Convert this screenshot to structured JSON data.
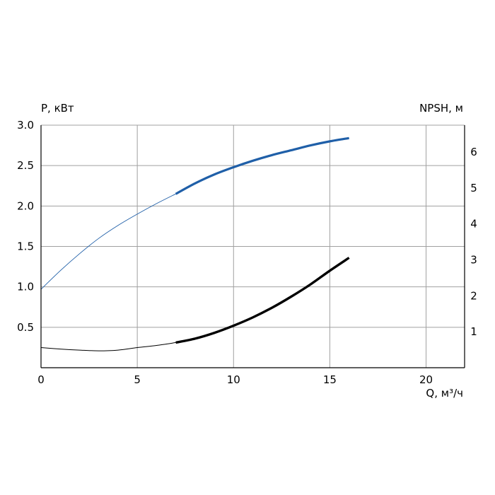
{
  "chart_data": {
    "type": "line",
    "title": "",
    "xlabel": "Q, м³/ч",
    "ylabel": "P, кВт",
    "y2label": "NPSH, м",
    "xlim": [
      0,
      22
    ],
    "ylim": [
      0,
      3.0
    ],
    "y2lim": [
      0,
      6.75
    ],
    "grid": true,
    "x_ticks": [
      "0",
      "5",
      "10",
      "15",
      "20"
    ],
    "y_ticks": [
      "0.5",
      "1.0",
      "1.5",
      "2.0",
      "2.5",
      "3.0"
    ],
    "y2_ticks": [
      "1",
      "2",
      "3",
      "4",
      "5",
      "6"
    ],
    "colors": {
      "power": "#1f5fa8",
      "npsh": "#000000",
      "grid": "#a0a0a0"
    },
    "series": [
      {
        "axis": "left",
        "x": [
          0,
          1,
          2,
          3,
          4,
          5,
          6,
          7,
          8,
          9,
          10,
          11,
          12,
          13,
          14,
          15,
          16
        ],
        "y": [
          0.97,
          1.2,
          1.41,
          1.6,
          1.76,
          1.9,
          2.03,
          2.15,
          2.28,
          2.39,
          2.48,
          2.56,
          2.63,
          2.69,
          2.75,
          2.8,
          2.84
        ],
        "thick_from_x": 7
      },
      {
        "axis": "right",
        "x": [
          0,
          1,
          2,
          3,
          4,
          5,
          6,
          7,
          8,
          9,
          10,
          11,
          12,
          13,
          14,
          15,
          16
        ],
        "y": [
          0.56,
          0.52,
          0.49,
          0.47,
          0.49,
          0.56,
          0.62,
          0.7,
          0.81,
          0.97,
          1.17,
          1.4,
          1.67,
          1.98,
          2.32,
          2.7,
          3.06
        ],
        "thick_from_x": 7
      }
    ]
  }
}
